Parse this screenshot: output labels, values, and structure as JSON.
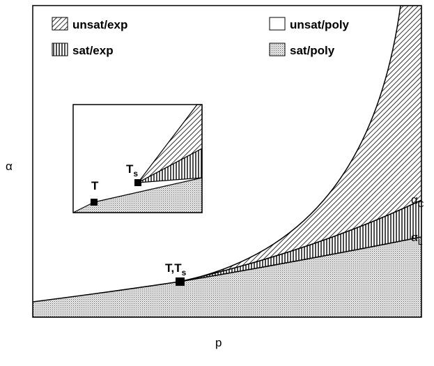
{
  "legend": [
    {
      "label": "unsat/exp"
    },
    {
      "label": "unsat/poly"
    },
    {
      "label": "sat/exp"
    },
    {
      "label": "sat/poly"
    }
  ],
  "axes": {
    "y": "α",
    "x": "p"
  },
  "inset": {
    "points": [
      {
        "label": "T"
      },
      {
        "label": "T",
        "sub": "s"
      }
    ]
  },
  "main": {
    "point": {
      "label": "T,T",
      "sub": "s"
    },
    "curves": [
      {
        "label": "α",
        "sub": "C"
      },
      {
        "label": "α",
        "sub": "L"
      }
    ]
  }
}
